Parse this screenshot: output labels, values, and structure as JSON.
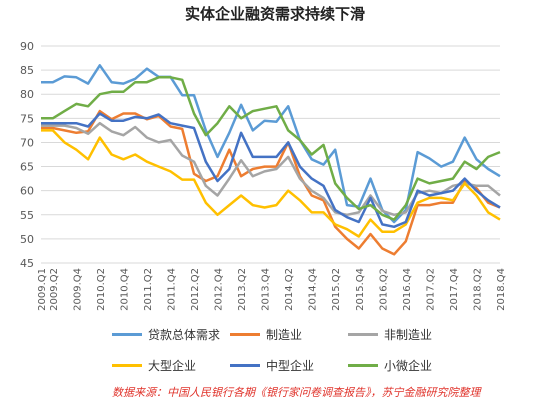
{
  "title": "实体企业融资需求持续下滑",
  "source_note": "数据来源：中国人民银行各期《银行家问卷调查报告》，苏宁金融研究院整理",
  "chart_data": {
    "type": "line",
    "title": "实体企业融资需求持续下滑",
    "xlabel": "",
    "ylabel": "",
    "ylim": [
      45,
      90
    ],
    "yticks": [
      45,
      50,
      55,
      60,
      65,
      70,
      75,
      80,
      85,
      90
    ],
    "grid": true,
    "legend_position": "bottom",
    "x": [
      "2009.Q1",
      "2009.Q2",
      "2009.Q3",
      "2009.Q4",
      "2010.Q1",
      "2010.Q2",
      "2010.Q3",
      "2010.Q4",
      "2011.Q1",
      "2011.Q2",
      "2011.Q3",
      "2011.Q4",
      "2012.Q1",
      "2012.Q2",
      "2012.Q3",
      "2012.Q4",
      "2013.Q1",
      "2013.Q2",
      "2013.Q3",
      "2013.Q4",
      "2014.Q1",
      "2014.Q2",
      "2014.Q3",
      "2014.Q4",
      "2015.Q1",
      "2015.Q2",
      "2015.Q3",
      "2015.Q4",
      "2016.Q1",
      "2016.Q2",
      "2016.Q3",
      "2016.Q4",
      "2017.Q1",
      "2017.Q2",
      "2017.Q3",
      "2017.Q4",
      "2018.Q1",
      "2018.Q2",
      "2018.Q3",
      "2018.Q4"
    ],
    "xtick_labels": [
      "2009.Q1",
      "2009.Q2",
      "2009.Q4",
      "2010.Q2",
      "2010.Q4",
      "2011.Q2",
      "2011.Q4",
      "2012.Q2",
      "2012.Q4",
      "2013.Q2",
      "2013.Q4",
      "2014.Q2",
      "2014.Q4",
      "2015.Q2",
      "2015.Q4",
      "2016.Q2",
      "2016.Q4",
      "2017.Q2",
      "2017.Q4",
      "2018.Q2",
      "2018.Q4"
    ],
    "series": [
      {
        "name": "贷款总体需求",
        "color": "#5b9bd5",
        "values": [
          82.5,
          82.5,
          83.7,
          83.5,
          82.2,
          86,
          82.5,
          82.2,
          83.2,
          85.3,
          83.6,
          83.6,
          79.8,
          79.8,
          72.5,
          67,
          72,
          77.8,
          72.5,
          74.5,
          74.3,
          77.5,
          70.5,
          66.5,
          65.4,
          68.5,
          57,
          56.7,
          62.5,
          56,
          53.5,
          56,
          68,
          66.7,
          65,
          66,
          71,
          66.5,
          64.5,
          63
        ]
      },
      {
        "name": "制造业",
        "color": "#ed7d31",
        "values": [
          73,
          73,
          72.5,
          72,
          72.3,
          76.5,
          74.8,
          76,
          76,
          74.8,
          75.5,
          73.3,
          72.8,
          63.5,
          62,
          63,
          68.5,
          63,
          64.5,
          65,
          65,
          70,
          63,
          59,
          58,
          52.5,
          50,
          48,
          51,
          48,
          46.8,
          49.5,
          57,
          57,
          57.5,
          57.5,
          62,
          60.5,
          57.5,
          56.5
        ]
      },
      {
        "name": "非制造业",
        "color": "#a5a5a5",
        "values": [
          73.5,
          73.5,
          73.5,
          73,
          71.8,
          74,
          72.3,
          71.5,
          73.2,
          71,
          70,
          70.5,
          67.3,
          66,
          61,
          59,
          62.5,
          66.3,
          63,
          64,
          64.5,
          67,
          62.5,
          60,
          58.5,
          55.5,
          55,
          55.5,
          59,
          55.8,
          55,
          55.5,
          59.5,
          60,
          59.5,
          61,
          61.5,
          61,
          61,
          59
        ]
      },
      {
        "name": "大型企业",
        "color": "#ffc000",
        "values": [
          72.5,
          72.5,
          70,
          68.5,
          66.5,
          71,
          67.5,
          66.5,
          67.5,
          66,
          65,
          64,
          62.3,
          62.3,
          57.5,
          55,
          57,
          59,
          57,
          56.5,
          57,
          60,
          58,
          55.5,
          55.5,
          53,
          52,
          50.5,
          54,
          51.5,
          51.5,
          53,
          57.5,
          58.5,
          58.5,
          58,
          61.5,
          59,
          55.5,
          54
        ]
      },
      {
        "name": "中型企业",
        "color": "#4472c4",
        "values": [
          74,
          74,
          74,
          74,
          73.3,
          76,
          74.5,
          74.5,
          75.3,
          75,
          75.8,
          74,
          73.5,
          73,
          66,
          62,
          64.5,
          72,
          67,
          67,
          67,
          70,
          65,
          62.5,
          61,
          56,
          54.5,
          53.5,
          58.5,
          53,
          52.5,
          53.5,
          60,
          59,
          59.5,
          60,
          62.5,
          60,
          58,
          56.5
        ]
      },
      {
        "name": "小微企业",
        "color": "#70ad47",
        "values": [
          75,
          75,
          76.5,
          78,
          77.5,
          80,
          80.5,
          80.5,
          82.5,
          82.5,
          83.5,
          83.5,
          83,
          76,
          71.5,
          74,
          77.5,
          75,
          76.5,
          77,
          77.5,
          72.5,
          70.5,
          67.5,
          69.5,
          61.5,
          58.5,
          56.2,
          57,
          55,
          54,
          57,
          62.5,
          61.5,
          62,
          62.5,
          66,
          64.5,
          67,
          68
        ]
      }
    ]
  }
}
